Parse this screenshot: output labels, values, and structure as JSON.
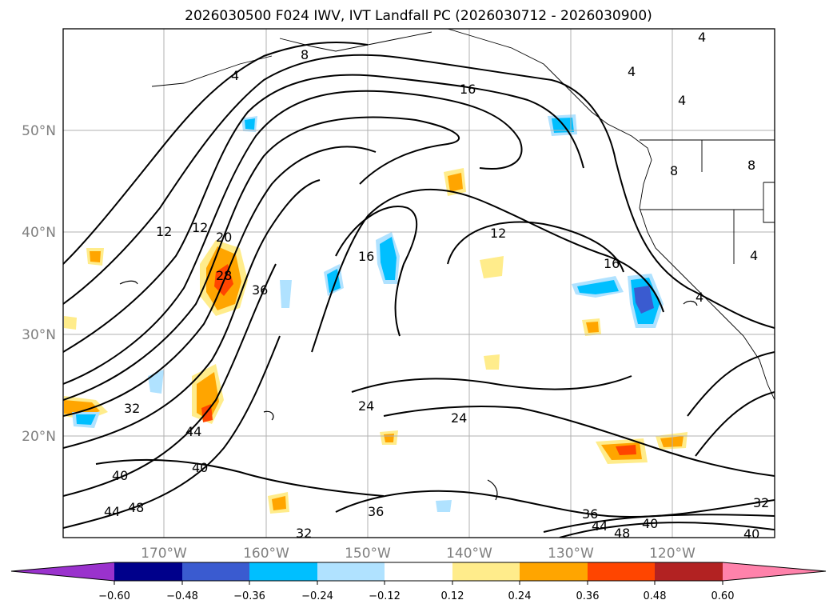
{
  "title": "2026030500 F024 IWV, IVT Landfall PC (2026030712 - 2026030900)",
  "lat_labels": [
    "50°N",
    "40°N",
    "30°N",
    "20°N"
  ],
  "lon_labels": [
    "170°W",
    "160°W",
    "150°W",
    "140°W",
    "130°W",
    "120°W"
  ],
  "colorbar": {
    "ticks": [
      "−0.60",
      "−0.48",
      "−0.36",
      "−0.24",
      "−0.12",
      "0.12",
      "0.24",
      "0.36",
      "0.48",
      "0.60"
    ],
    "colors": [
      "#9a32cd",
      "#00008b",
      "#3a5bd0",
      "#00bfff",
      "#b0e2ff",
      "#ffffff",
      "#ffec8b",
      "#ffa500",
      "#ff4500",
      "#b22222",
      "#ff82ab"
    ]
  },
  "contour_labels": [
    "4",
    "8",
    "16",
    "12",
    "12",
    "20",
    "28",
    "36",
    "16",
    "12",
    "16",
    "8",
    "4",
    "24",
    "24",
    "32",
    "44",
    "40",
    "40",
    "44",
    "48",
    "36",
    "32",
    "36",
    "44",
    "48",
    "40",
    "32",
    "40",
    "4",
    "4",
    "8",
    "4",
    "4"
  ],
  "fill_colors": {
    "positive_light": "#ffec8b",
    "positive_mid": "#ffa500",
    "positive_high": "#ff4500",
    "negative_light": "#b0e2ff",
    "negative_mid": "#00bfff",
    "negative_high": "#3a5bd0"
  }
}
